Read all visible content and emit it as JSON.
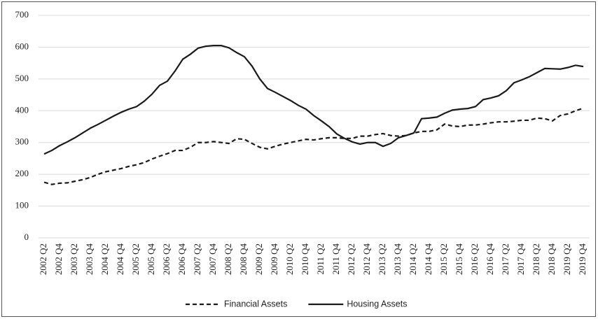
{
  "chart_data": {
    "type": "line",
    "categories": [
      "2002 Q2",
      null,
      "2002 Q4",
      null,
      "2003 Q2",
      null,
      "2003 Q4",
      null,
      "2004 Q2",
      null,
      "2004 Q4",
      null,
      "2005 Q2",
      null,
      "2005 Q4",
      null,
      "2006 Q2",
      null,
      "2006 Q4",
      null,
      "2007 Q2",
      null,
      "2007 Q4",
      null,
      "2008 Q2",
      null,
      "2008 Q4",
      null,
      "2009 Q2",
      null,
      "2009 Q4",
      null,
      "2010 Q2",
      null,
      "2010 Q4",
      null,
      "2011 Q2",
      null,
      "2011 Q4",
      null,
      "2012 Q2",
      null,
      "2012 Q4",
      null,
      "2013 Q2",
      null,
      "2013 Q4",
      null,
      "2014 Q2",
      null,
      "2014 Q4",
      null,
      "2015 Q2",
      null,
      "2015 Q4",
      null,
      "2016 Q2",
      null,
      "2016 Q4",
      null,
      "2017 Q2",
      null,
      "2017 Q4",
      null,
      "2018 Q2",
      null,
      "2018 Q4",
      null,
      "2019 Q2",
      null,
      "2019 Q4"
    ],
    "series": [
      {
        "name": "Financial Assets",
        "color": "#1a1a1a",
        "style": "dashed",
        "values": [
          175,
          168,
          172,
          173,
          178,
          183,
          190,
          200,
          208,
          213,
          218,
          225,
          230,
          237,
          248,
          257,
          265,
          275,
          275,
          285,
          300,
          300,
          303,
          300,
          297,
          312,
          310,
          297,
          285,
          280,
          288,
          295,
          300,
          305,
          310,
          308,
          312,
          315,
          315,
          313,
          313,
          320,
          320,
          325,
          328,
          322,
          320,
          322,
          330,
          335,
          335,
          340,
          358,
          352,
          350,
          355,
          355,
          358,
          362,
          365,
          365,
          367,
          370,
          370,
          377,
          375,
          368,
          385,
          390,
          400,
          408
        ]
      },
      {
        "name": "Housing Assets",
        "color": "#1a1a1a",
        "style": "solid",
        "values": [
          264,
          275,
          290,
          302,
          315,
          330,
          345,
          357,
          370,
          383,
          395,
          405,
          413,
          430,
          452,
          480,
          493,
          525,
          562,
          578,
          597,
          603,
          605,
          605,
          598,
          583,
          570,
          540,
          500,
          470,
          458,
          445,
          432,
          417,
          405,
          385,
          368,
          350,
          327,
          313,
          302,
          295,
          300,
          300,
          288,
          297,
          315,
          322,
          330,
          375,
          377,
          380,
          392,
          402,
          405,
          407,
          413,
          435,
          440,
          447,
          463,
          488,
          497,
          507,
          520,
          533,
          532,
          531,
          536,
          543,
          539
        ]
      }
    ],
    "ylim": [
      0,
      700
    ],
    "yticks": [
      0,
      100,
      200,
      300,
      400,
      500,
      600,
      700
    ],
    "grid": true,
    "legend": "bottom"
  }
}
